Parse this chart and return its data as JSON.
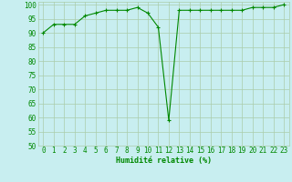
{
  "x": [
    0,
    1,
    2,
    3,
    4,
    5,
    6,
    7,
    8,
    9,
    10,
    11,
    12,
    13,
    14,
    15,
    16,
    17,
    18,
    19,
    20,
    21,
    22,
    23
  ],
  "y": [
    90,
    93,
    93,
    93,
    96,
    97,
    98,
    98,
    98,
    99,
    97,
    92,
    59,
    98,
    98,
    98,
    98,
    98,
    98,
    98,
    99,
    99,
    99,
    100
  ],
  "line_color": "#008800",
  "marker": "+",
  "marker_size": 3,
  "marker_linewidth": 0.8,
  "bg_color": "#c8eef0",
  "grid_color": "#aaccaa",
  "xlabel": "Humidité relative (%)",
  "xlabel_color": "#008800",
  "tick_color": "#008800",
  "ylim": [
    50,
    101
  ],
  "xlim": [
    -0.5,
    23.5
  ],
  "yticks": [
    50,
    55,
    60,
    65,
    70,
    75,
    80,
    85,
    90,
    95,
    100
  ],
  "xticks": [
    0,
    1,
    2,
    3,
    4,
    5,
    6,
    7,
    8,
    9,
    10,
    11,
    12,
    13,
    14,
    15,
    16,
    17,
    18,
    19,
    20,
    21,
    22,
    23
  ],
  "tick_fontsize": 5.5,
  "xlabel_fontsize": 6,
  "line_width": 0.8
}
